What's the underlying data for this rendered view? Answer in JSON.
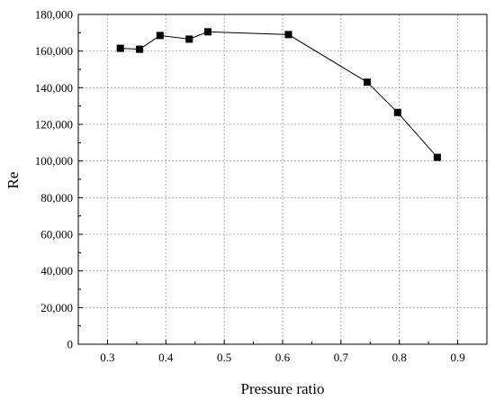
{
  "chart_data": {
    "type": "line",
    "xlabel": "Pressure ratio",
    "ylabel": "Re",
    "xlim": [
      0.25,
      0.95
    ],
    "ylim": [
      0,
      180000
    ],
    "x_ticks": [
      0.3,
      0.4,
      0.5,
      0.6,
      0.7,
      0.8,
      0.9
    ],
    "x_tick_labels": [
      "0.3",
      "0.4",
      "0.5",
      "0.6",
      "0.7",
      "0.8",
      "0.9"
    ],
    "y_ticks": [
      0,
      20000,
      40000,
      60000,
      80000,
      100000,
      120000,
      140000,
      160000,
      180000
    ],
    "y_tick_labels": [
      "0",
      "20,000",
      "40,000",
      "60,000",
      "80,000",
      "100,000",
      "120,000",
      "140,000",
      "160,000",
      "180,000"
    ],
    "grid": true,
    "series": [
      {
        "marker": "square",
        "color": "#000000",
        "x": [
          0.322,
          0.355,
          0.39,
          0.44,
          0.472,
          0.61,
          0.745,
          0.797,
          0.865
        ],
        "y": [
          161500,
          161000,
          168500,
          166500,
          170500,
          169000,
          143000,
          126500,
          102000
        ]
      }
    ]
  }
}
